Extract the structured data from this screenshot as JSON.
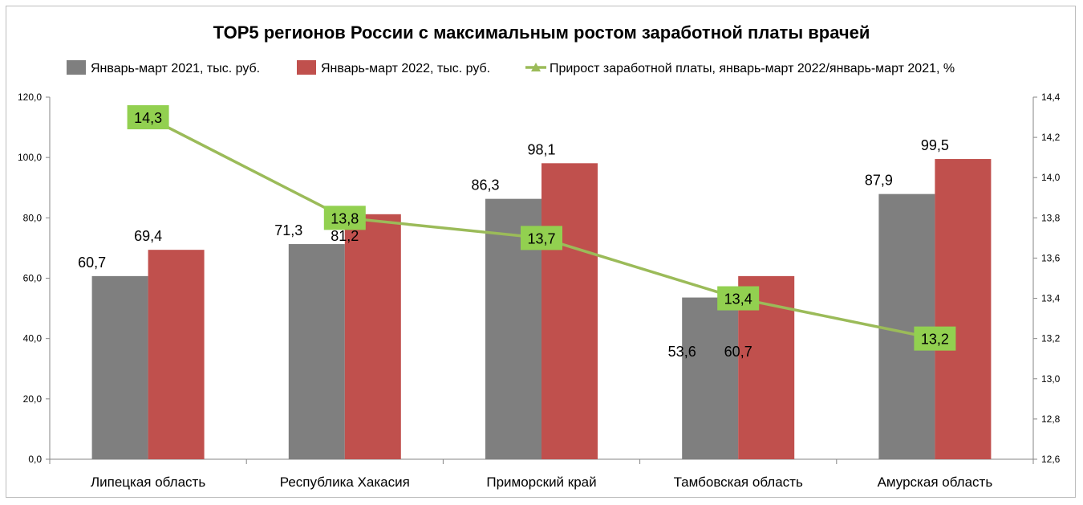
{
  "chart_data": {
    "type": "bar+line",
    "title": "TOP5 регионов России с максимальным ростом заработной платы врачей",
    "categories": [
      "Липецкая область",
      "Республика Хакасия",
      "Приморский край",
      "Тамбовская область",
      "Амурская область"
    ],
    "series": [
      {
        "name": "Январь-март 2021, тыс. руб.",
        "kind": "bar",
        "axis": "left",
        "color": "#7f7f7f",
        "values": [
          60.7,
          71.3,
          86.3,
          53.6,
          87.9
        ],
        "labels": [
          "60,7",
          "71,3",
          "86,3",
          "53,6",
          "87,9"
        ]
      },
      {
        "name": "Январь-март 2022, тыс. руб.",
        "kind": "bar",
        "axis": "left",
        "color": "#c0504d",
        "values": [
          69.4,
          81.2,
          98.1,
          60.7,
          99.5
        ],
        "labels": [
          "69,4",
          "81,2",
          "98,1",
          "60,7",
          "99,5"
        ]
      },
      {
        "name": "Прирост заработной платы, январь-март 2022/январь-март 2021, %",
        "kind": "line",
        "axis": "right",
        "color": "#9bbb59",
        "label_bg": "#92d050",
        "values": [
          14.3,
          13.8,
          13.7,
          13.4,
          13.2
        ],
        "labels": [
          "14,3",
          "13,8",
          "13,7",
          "13,4",
          "13,2"
        ]
      }
    ],
    "y_left": {
      "min": 0,
      "max": 120,
      "step": 20,
      "tick_labels": [
        "0,0",
        "20,0",
        "40,0",
        "60,0",
        "80,0",
        "100,0",
        "120,0"
      ]
    },
    "y_right": {
      "min": 12.6,
      "max": 14.4,
      "step": 0.2,
      "tick_labels": [
        "12,6",
        "12,8",
        "13,0",
        "13,2",
        "13,4",
        "13,6",
        "13,8",
        "14,0",
        "14,2",
        "14,4"
      ]
    },
    "legend_position": "top",
    "grid": false
  }
}
